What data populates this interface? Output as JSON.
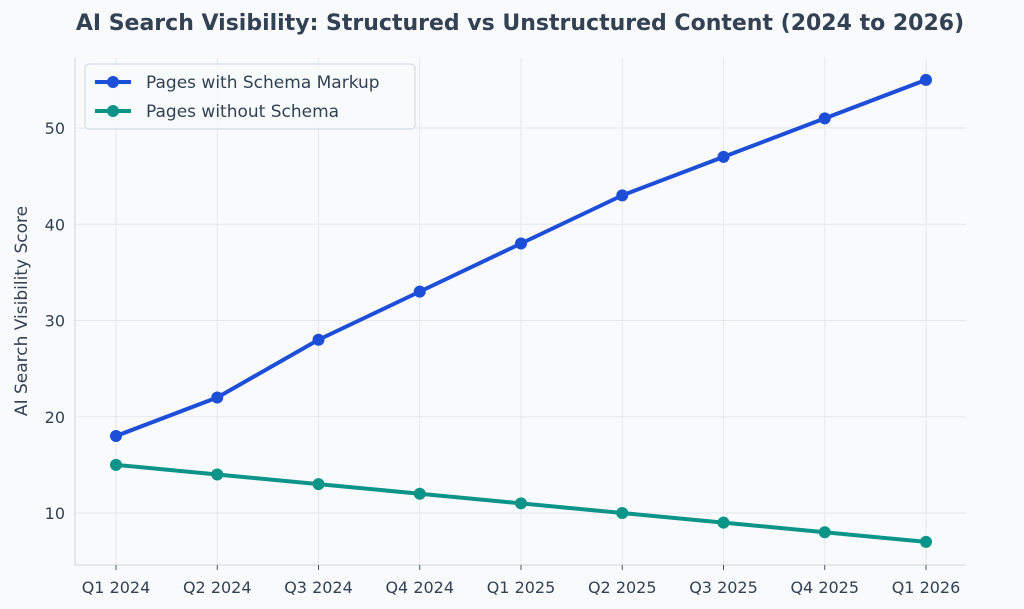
{
  "chart_data": {
    "type": "line",
    "title": "AI Search Visibility: Structured vs Unstructured Content (2024 to 2026)",
    "xlabel": "",
    "ylabel": "AI Search Visibility Score",
    "categories": [
      "Q1 2024",
      "Q2 2024",
      "Q3 2024",
      "Q4 2024",
      "Q1 2025",
      "Q2 2025",
      "Q3 2025",
      "Q4 2025",
      "Q1 2026"
    ],
    "series": [
      {
        "name": "Pages with Schema Markup",
        "color": "#1d4ed8",
        "values": [
          18,
          22,
          28,
          33,
          38,
          43,
          47,
          51,
          55
        ]
      },
      {
        "name": "Pages without Schema",
        "color": "#0d9488",
        "values": [
          15,
          14,
          13,
          12,
          11,
          10,
          9,
          8,
          7
        ]
      }
    ],
    "ylim": [
      5,
      57
    ],
    "yticks": [
      10,
      20,
      30,
      40,
      50
    ],
    "grid": true,
    "legend_position": "top-left"
  }
}
